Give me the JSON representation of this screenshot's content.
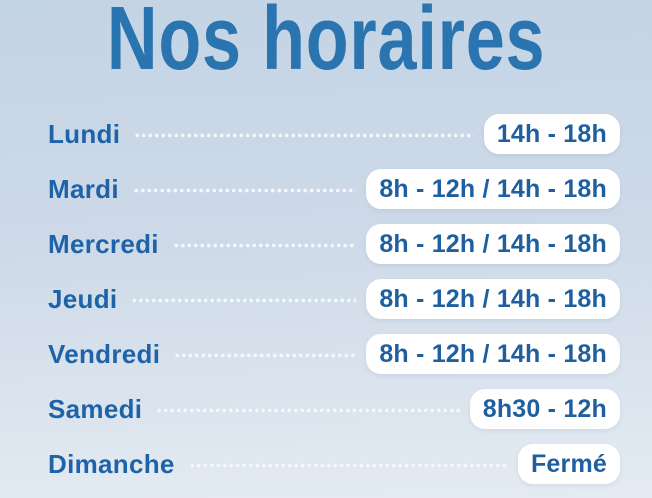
{
  "title": "Nos horaires",
  "colors": {
    "background_top": "#c3d4e5",
    "background_bottom": "#e4ebf2",
    "title_text": "#2a74b0",
    "day_text": "#1e63a8",
    "pill_text": "#1e5f9f",
    "pill_background": "#ffffff",
    "dotted_leader": "#f4f8fb"
  },
  "rows": [
    {
      "day": "Lundi",
      "hours": "14h - 18h"
    },
    {
      "day": "Mardi",
      "hours": "8h - 12h / 14h - 18h"
    },
    {
      "day": "Mercredi",
      "hours": "8h - 12h / 14h - 18h"
    },
    {
      "day": "Jeudi",
      "hours": "8h - 12h / 14h - 18h"
    },
    {
      "day": "Vendredi",
      "hours": "8h - 12h / 14h - 18h"
    },
    {
      "day": "Samedi",
      "hours": "8h30 - 12h"
    },
    {
      "day": "Dimanche",
      "hours": "Fermé"
    }
  ]
}
